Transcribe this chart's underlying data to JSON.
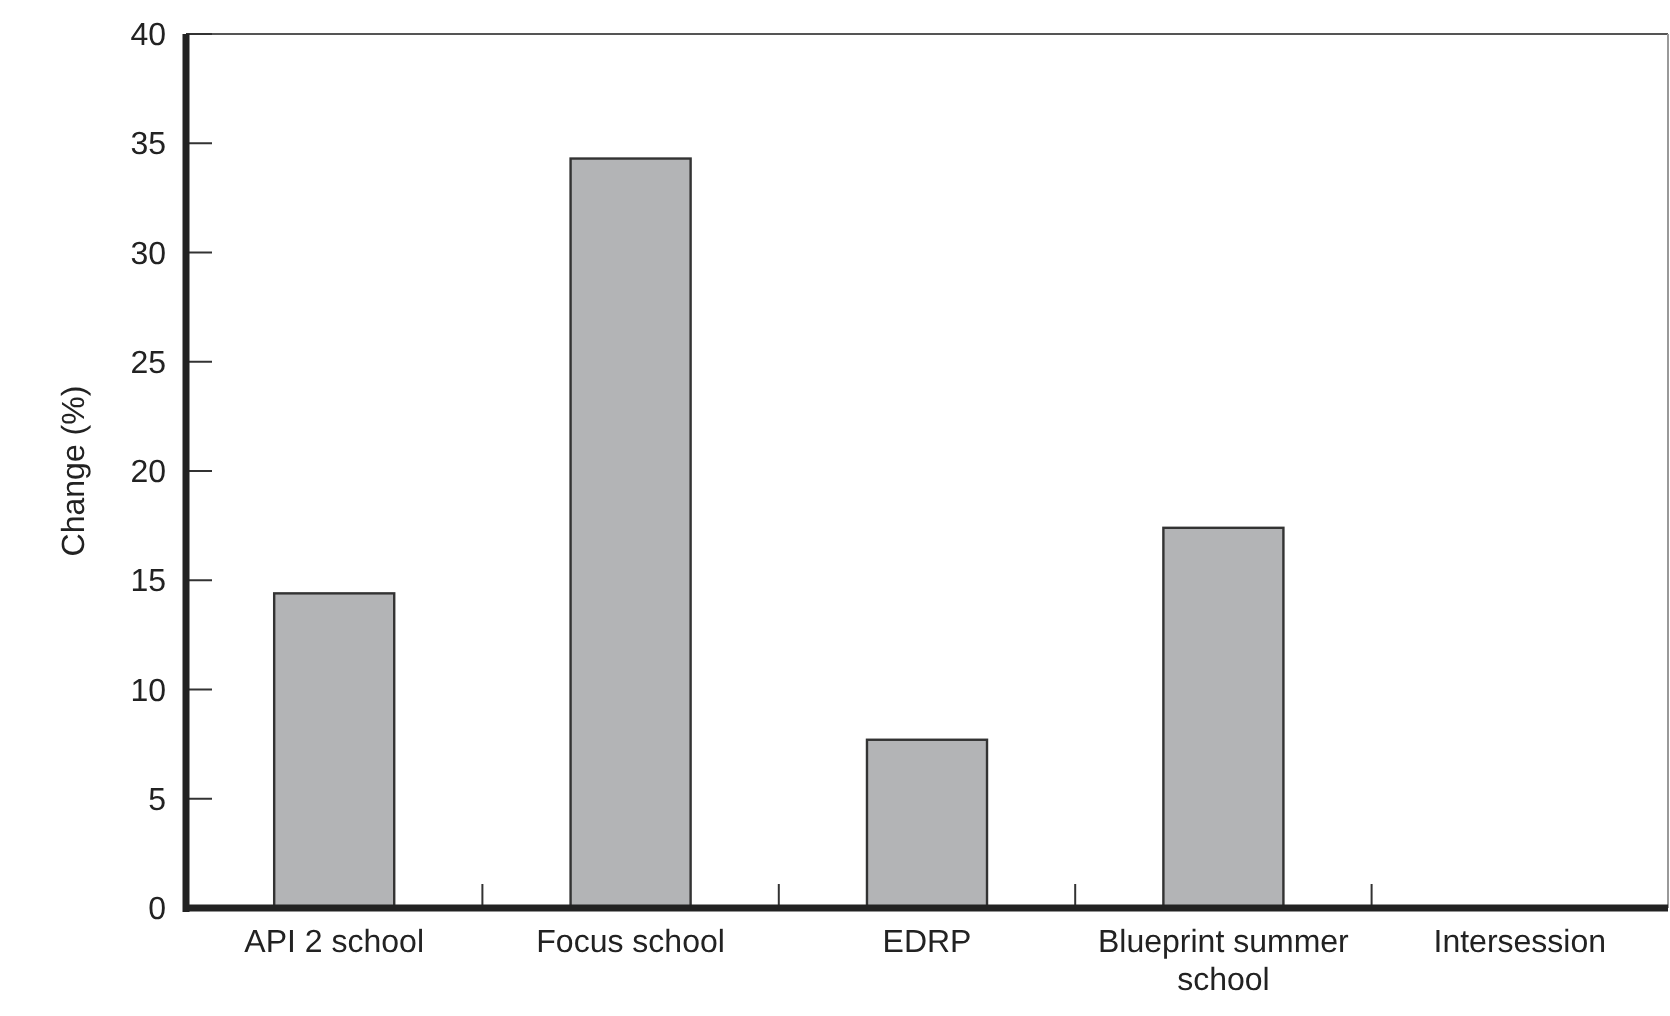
{
  "chart_data": {
    "type": "bar",
    "ylabel": "Change (%)",
    "categories": [
      "API 2 school",
      "Focus school",
      "EDRP",
      "Blueprint summer school",
      "Intersession"
    ],
    "values": [
      14.4,
      34.3,
      7.7,
      17.4,
      0
    ],
    "color": "#b3b4b6",
    "ylim": [
      0,
      40
    ],
    "yticks": [
      0,
      5,
      10,
      15,
      20,
      25,
      30,
      35,
      40
    ],
    "grid": false
  }
}
